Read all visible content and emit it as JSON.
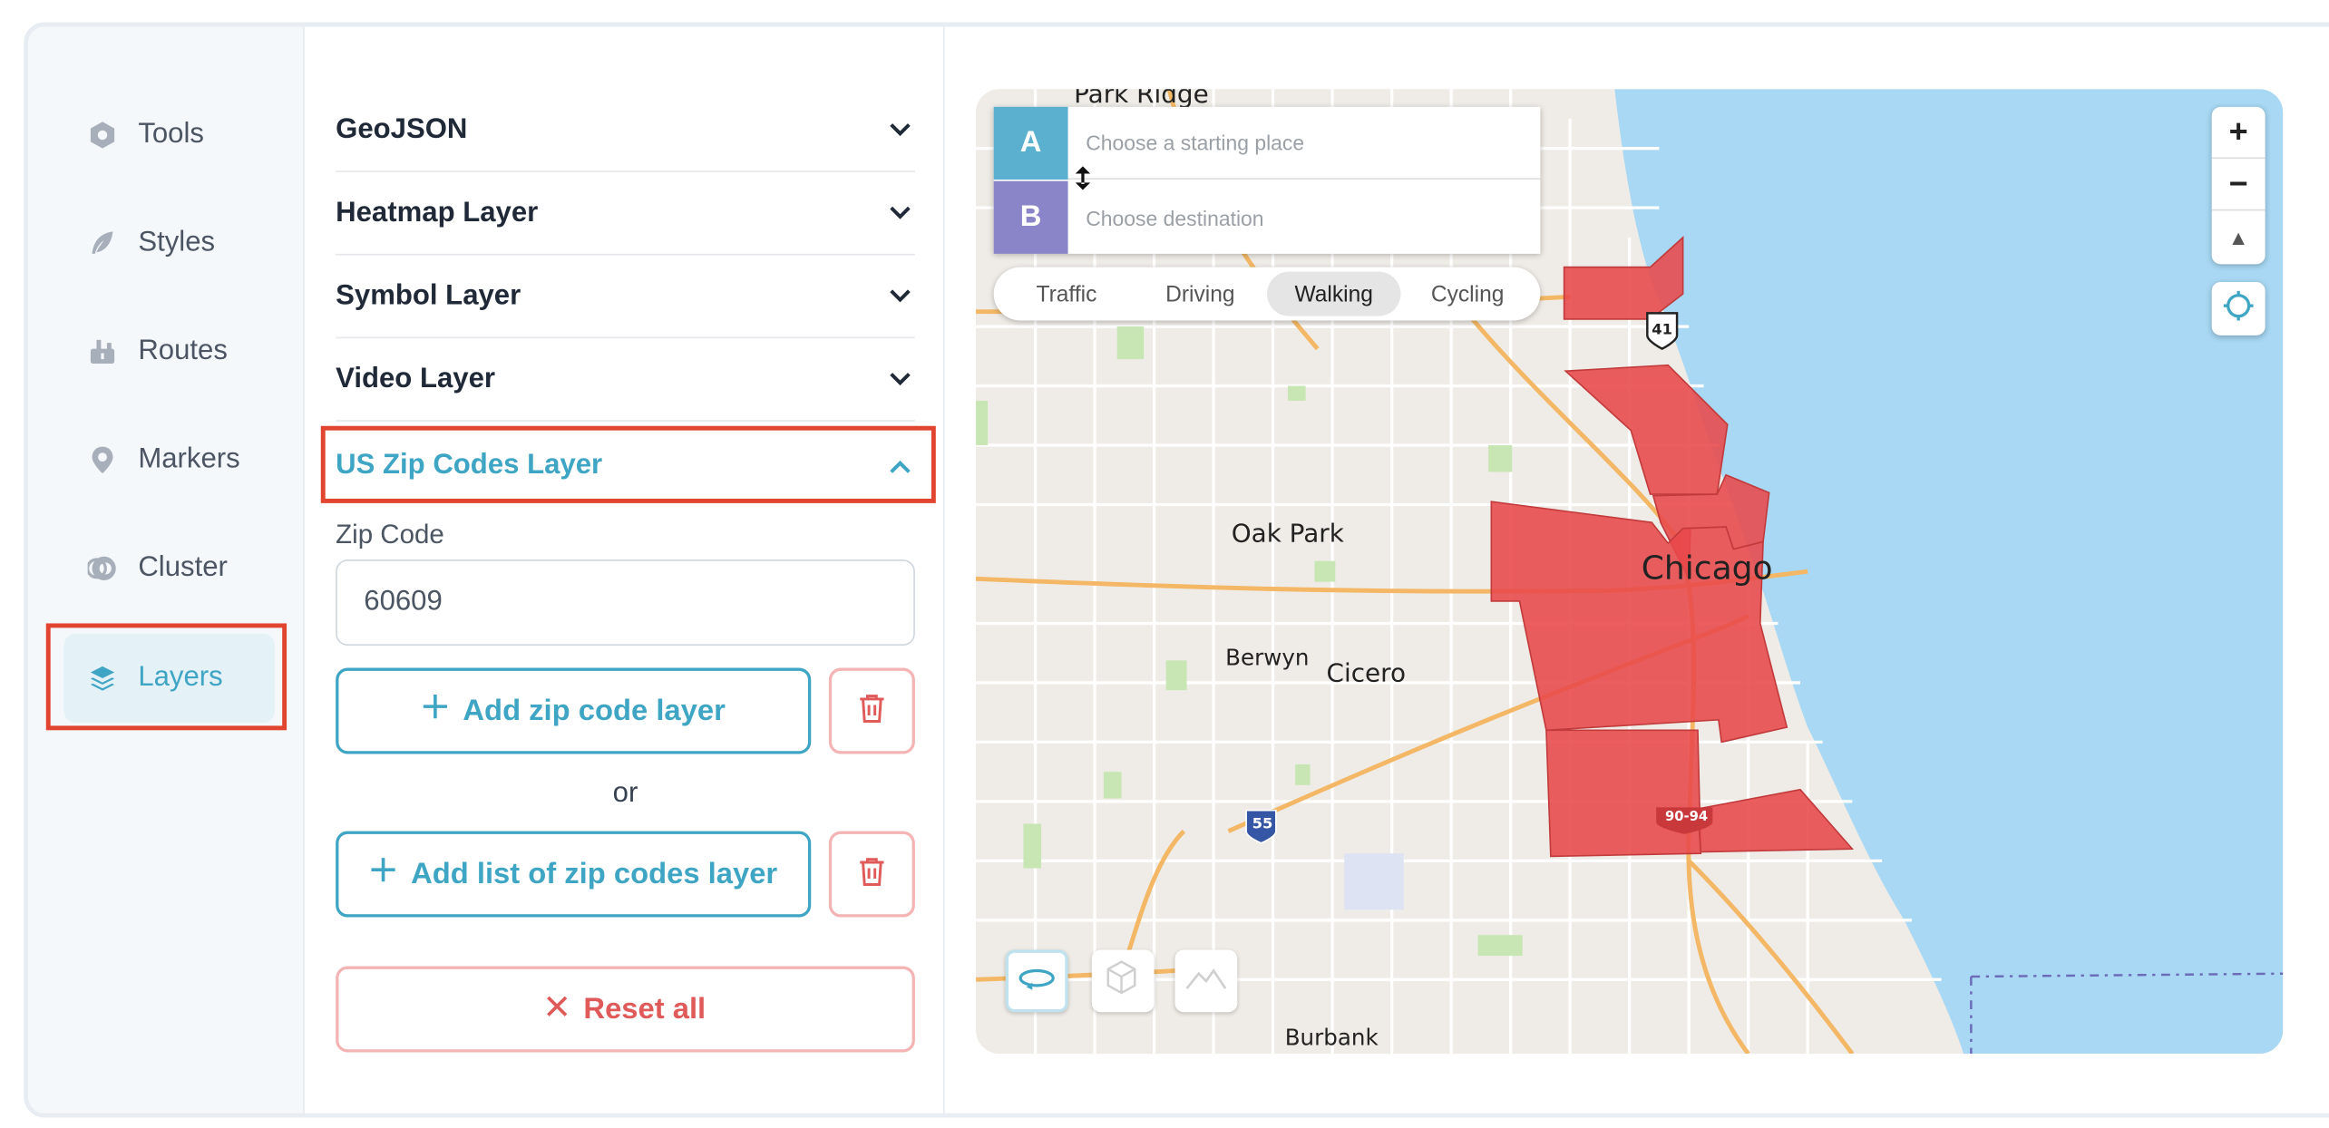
{
  "sidebar": {
    "items": [
      {
        "label": "Tools",
        "icon": "hexagon-icon"
      },
      {
        "label": "Styles",
        "icon": "feather-icon"
      },
      {
        "label": "Routes",
        "icon": "route-icon"
      },
      {
        "label": "Markers",
        "icon": "pin-icon"
      },
      {
        "label": "Cluster",
        "icon": "cluster-icon"
      },
      {
        "label": "Layers",
        "icon": "layers-icon",
        "active": true
      }
    ]
  },
  "panel": {
    "sections": [
      "GeoJSON",
      "Heatmap Layer",
      "Symbol Layer",
      "Video Layer"
    ],
    "open_section": "US Zip Codes Layer",
    "zip_label": "Zip Code",
    "zip_value": "60609",
    "add_zip_label": "Add zip code layer",
    "or_label": "or",
    "add_list_label": "Add list of zip codes layer",
    "reset_label": "Reset all"
  },
  "map": {
    "directions": {
      "a_label": "A",
      "b_label": "B",
      "start_placeholder": "Choose a starting place",
      "dest_placeholder": "Choose destination"
    },
    "modes": [
      "Traffic",
      "Driving",
      "Walking",
      "Cycling"
    ],
    "active_mode": "Walking",
    "places": [
      "Park Ridge",
      "Oak Park",
      "Chicago",
      "Berwyn",
      "Cicero",
      "Burbank"
    ],
    "shields": [
      "41",
      "55",
      "90-94"
    ],
    "zoom_in": "+",
    "zoom_out": "−",
    "compass": "▲"
  },
  "colors": {
    "accent": "#3fa5c4",
    "highlight": "#e2452f",
    "zip_fill": "#e8484a",
    "water": "#a8d8f3",
    "danger": "#e05a5a"
  }
}
